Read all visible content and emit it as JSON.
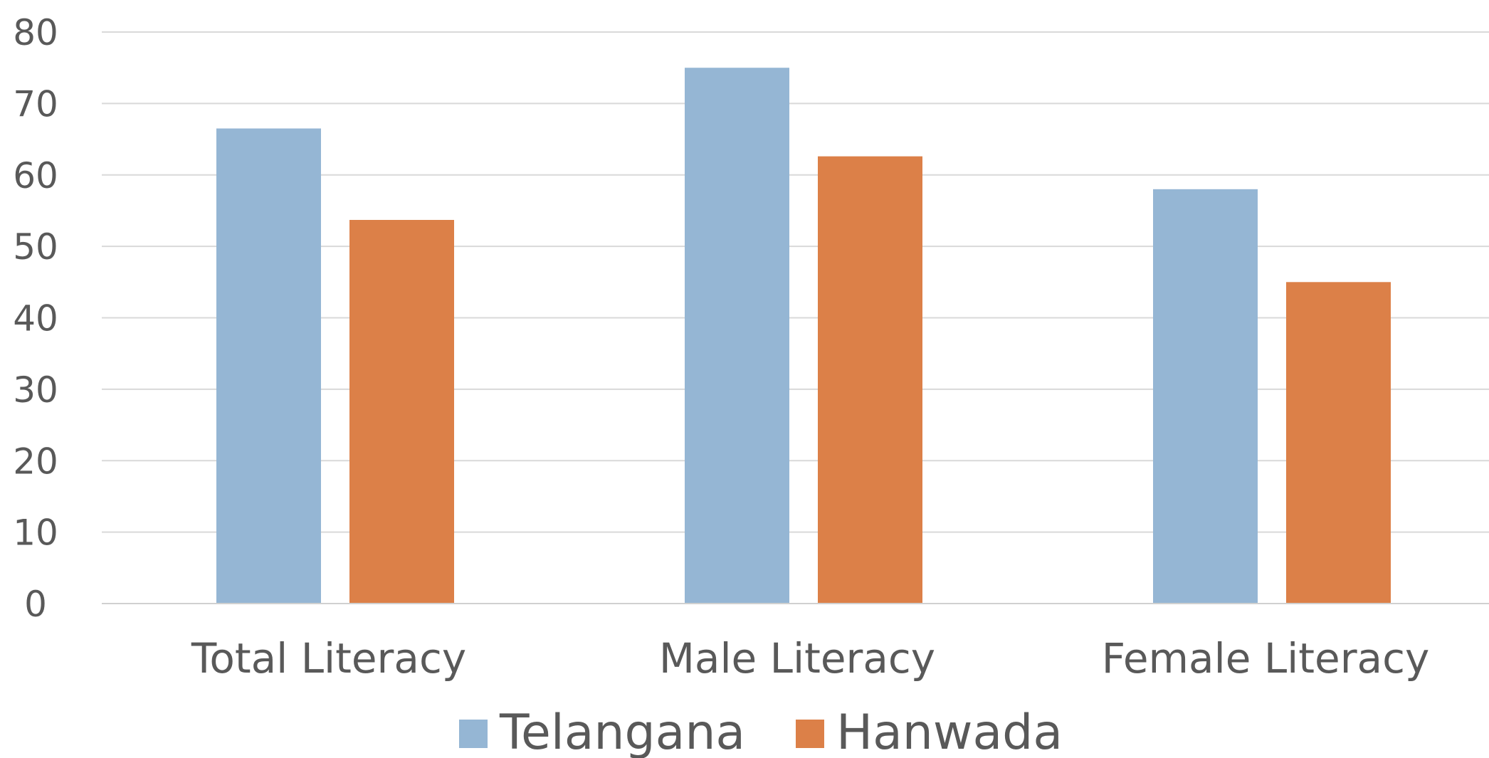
{
  "chart_data": {
    "type": "bar",
    "categories": [
      "Total Literacy",
      "Male Literacy",
      "Female Literacy"
    ],
    "series": [
      {
        "name": "Telangana",
        "values": [
          66.5,
          75,
          58
        ],
        "color": "#95b6d4"
      },
      {
        "name": "Hanwada",
        "values": [
          53.7,
          62.6,
          45
        ],
        "color": "#dc8048"
      }
    ],
    "yticks": [
      0,
      10,
      20,
      30,
      40,
      50,
      60,
      70,
      80
    ],
    "ylim": [
      0,
      80
    ],
    "grid": true,
    "legend_position": "bottom",
    "colors": {
      "gridline": "#d9d9d9",
      "axis": "#d0d0d0",
      "text": "#595959"
    }
  }
}
